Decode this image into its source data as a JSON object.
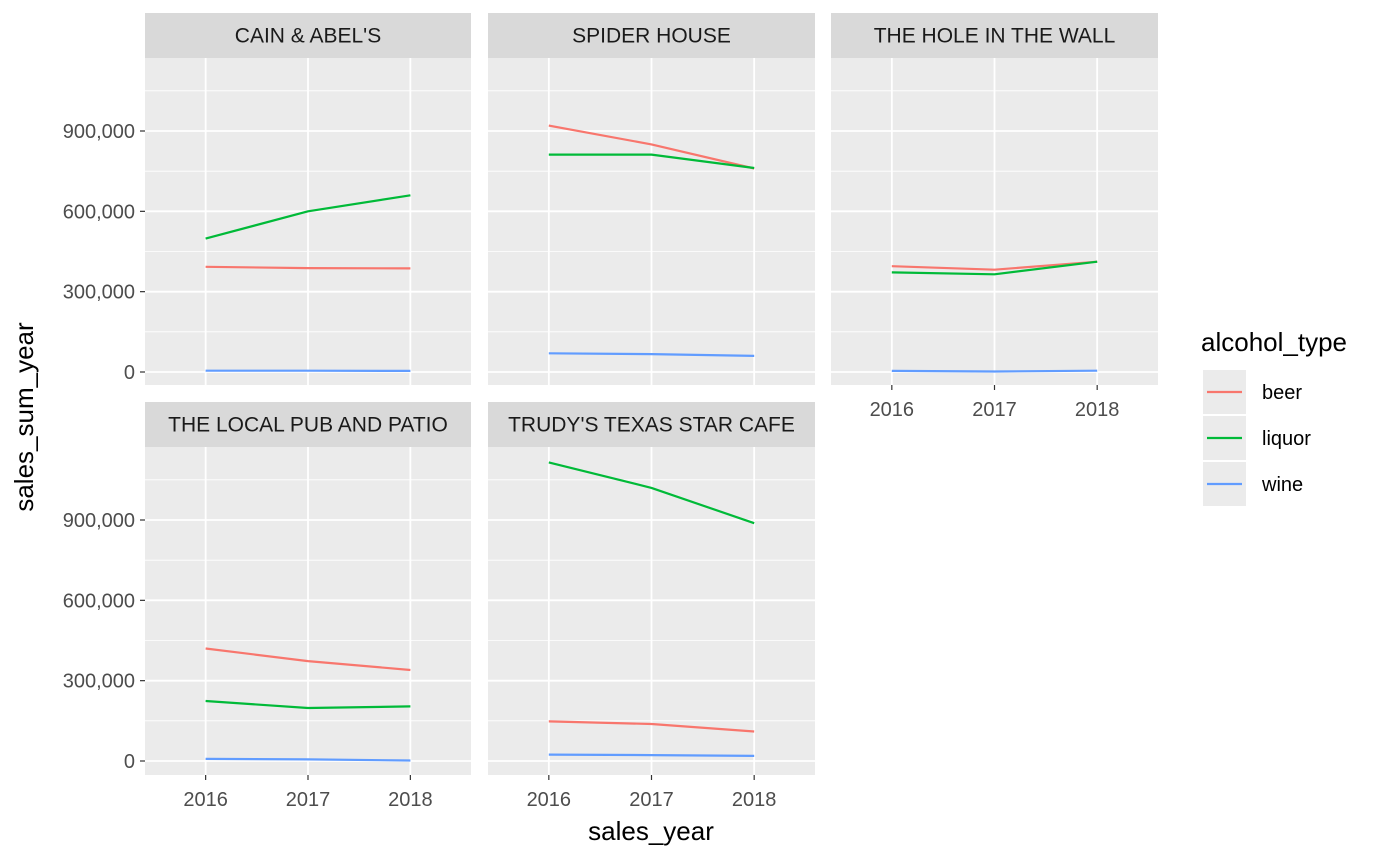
{
  "chart_data": {
    "type": "line",
    "facet_by": "establishment",
    "x": [
      2016,
      2017,
      2018
    ],
    "x_ticks": [
      "2016",
      "2017",
      "2018"
    ],
    "y_ticks": [
      0,
      300000,
      600000,
      900000
    ],
    "y_tick_labels": [
      "0",
      "300,000",
      "600,000",
      "900,000"
    ],
    "ylim": [
      -50000,
      1200000
    ],
    "xlabel": "sales_year",
    "ylabel": "sales_sum_year",
    "grid": true,
    "legend": {
      "title": "alcohol_type",
      "position": "right",
      "entries": [
        {
          "name": "beer",
          "color": "#F8766D"
        },
        {
          "name": "liquor",
          "color": "#00BA38"
        },
        {
          "name": "wine",
          "color": "#619CFF"
        }
      ]
    },
    "facets": [
      {
        "title": "CAIN & ABEL'S",
        "series": [
          {
            "name": "beer",
            "values": [
              393000,
              388000,
              387000
            ]
          },
          {
            "name": "liquor",
            "values": [
              498000,
              600000,
              660000
            ]
          },
          {
            "name": "wine",
            "values": [
              5000,
              5000,
              4000
            ]
          }
        ]
      },
      {
        "title": "SPIDER HOUSE",
        "series": [
          {
            "name": "beer",
            "values": [
              920000,
              850000,
              760000
            ]
          },
          {
            "name": "liquor",
            "values": [
              812000,
              812000,
              762000
            ]
          },
          {
            "name": "wine",
            "values": [
              70000,
              67000,
              60000
            ]
          }
        ]
      },
      {
        "title": "THE HOLE IN THE WALL",
        "series": [
          {
            "name": "beer",
            "values": [
              395000,
              382000,
              412000
            ]
          },
          {
            "name": "liquor",
            "values": [
              372000,
              365000,
              412000
            ]
          },
          {
            "name": "wine",
            "values": [
              4000,
              2000,
              5000
            ]
          }
        ]
      },
      {
        "title": "THE LOCAL PUB AND PATIO",
        "series": [
          {
            "name": "beer",
            "values": [
              420000,
              373000,
              340000
            ]
          },
          {
            "name": "liquor",
            "values": [
              224000,
              198000,
              204000
            ]
          },
          {
            "name": "wine",
            "values": [
              8000,
              6000,
              2000
            ]
          }
        ]
      },
      {
        "title": "TRUDY'S TEXAS STAR CAFE",
        "series": [
          {
            "name": "beer",
            "values": [
              148000,
              138000,
              110000
            ]
          },
          {
            "name": "liquor",
            "values": [
              1115000,
              1020000,
              888000
            ]
          },
          {
            "name": "wine",
            "values": [
              24000,
              22000,
              19000
            ]
          }
        ]
      }
    ]
  }
}
